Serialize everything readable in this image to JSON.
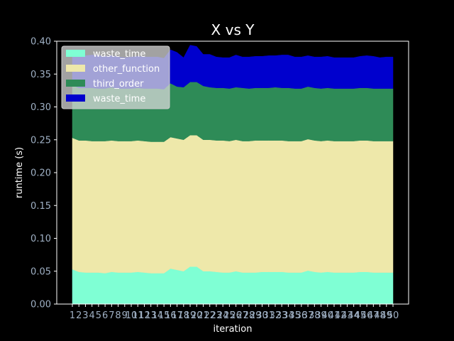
{
  "chart_data": {
    "type": "area",
    "stacked": true,
    "title": "X vs Y",
    "xlabel": "iteration",
    "ylabel": "runtime (s)",
    "ylim": [
      0,
      0.4
    ],
    "yticks": [
      "0.00",
      "0.05",
      "0.10",
      "0.15",
      "0.20",
      "0.25",
      "0.30",
      "0.35",
      "0.40"
    ],
    "x": [
      1,
      2,
      3,
      4,
      5,
      6,
      7,
      8,
      9,
      10,
      11,
      12,
      13,
      14,
      15,
      16,
      17,
      18,
      19,
      20,
      21,
      22,
      23,
      24,
      25,
      26,
      27,
      28,
      29,
      30,
      31,
      32,
      33,
      34,
      35,
      36,
      37,
      38,
      39,
      40,
      41,
      42,
      43,
      44,
      45,
      46,
      47,
      48,
      49,
      50
    ],
    "legend_position": "upper-left",
    "grid": false,
    "series": [
      {
        "name": "waste_time",
        "color": "#7fffd4",
        "values": [
          0.053,
          0.049,
          0.048,
          0.048,
          0.048,
          0.047,
          0.049,
          0.048,
          0.048,
          0.048,
          0.049,
          0.048,
          0.047,
          0.047,
          0.047,
          0.054,
          0.052,
          0.05,
          0.057,
          0.057,
          0.05,
          0.05,
          0.049,
          0.048,
          0.048,
          0.05,
          0.048,
          0.048,
          0.048,
          0.049,
          0.049,
          0.049,
          0.049,
          0.048,
          0.048,
          0.048,
          0.051,
          0.049,
          0.048,
          0.049,
          0.048,
          0.048,
          0.048,
          0.048,
          0.049,
          0.049,
          0.048,
          0.048,
          0.048,
          0.048
        ]
      },
      {
        "name": "other_function",
        "color": "#eee8aa",
        "values": [
          0.2,
          0.2,
          0.201,
          0.2,
          0.2,
          0.201,
          0.2,
          0.2,
          0.2,
          0.2,
          0.2,
          0.2,
          0.2,
          0.2,
          0.2,
          0.2,
          0.2,
          0.2,
          0.2,
          0.2,
          0.2,
          0.2,
          0.2,
          0.201,
          0.2,
          0.2,
          0.2,
          0.2,
          0.201,
          0.2,
          0.2,
          0.2,
          0.2,
          0.2,
          0.2,
          0.2,
          0.2,
          0.2,
          0.2,
          0.2,
          0.2,
          0.2,
          0.2,
          0.2,
          0.2,
          0.2,
          0.2,
          0.2,
          0.2,
          0.2
        ]
      },
      {
        "name": "third_order",
        "color": "#2e8b57",
        "values": [
          0.08,
          0.08,
          0.08,
          0.081,
          0.08,
          0.08,
          0.081,
          0.08,
          0.08,
          0.08,
          0.08,
          0.08,
          0.081,
          0.081,
          0.08,
          0.082,
          0.079,
          0.08,
          0.081,
          0.081,
          0.082,
          0.08,
          0.08,
          0.08,
          0.08,
          0.08,
          0.081,
          0.08,
          0.08,
          0.08,
          0.08,
          0.081,
          0.08,
          0.081,
          0.08,
          0.08,
          0.08,
          0.08,
          0.08,
          0.08,
          0.08,
          0.08,
          0.08,
          0.08,
          0.08,
          0.08,
          0.08,
          0.08,
          0.08,
          0.08
        ]
      },
      {
        "name": "waste_time",
        "color": "#0000cd",
        "values": [
          0.05,
          0.05,
          0.049,
          0.05,
          0.05,
          0.049,
          0.048,
          0.048,
          0.047,
          0.048,
          0.048,
          0.048,
          0.048,
          0.048,
          0.047,
          0.051,
          0.052,
          0.045,
          0.056,
          0.054,
          0.048,
          0.05,
          0.047,
          0.046,
          0.047,
          0.049,
          0.047,
          0.048,
          0.048,
          0.048,
          0.049,
          0.048,
          0.05,
          0.05,
          0.048,
          0.048,
          0.047,
          0.047,
          0.048,
          0.048,
          0.047,
          0.047,
          0.047,
          0.047,
          0.048,
          0.049,
          0.049,
          0.047,
          0.048,
          0.048
        ]
      }
    ]
  }
}
